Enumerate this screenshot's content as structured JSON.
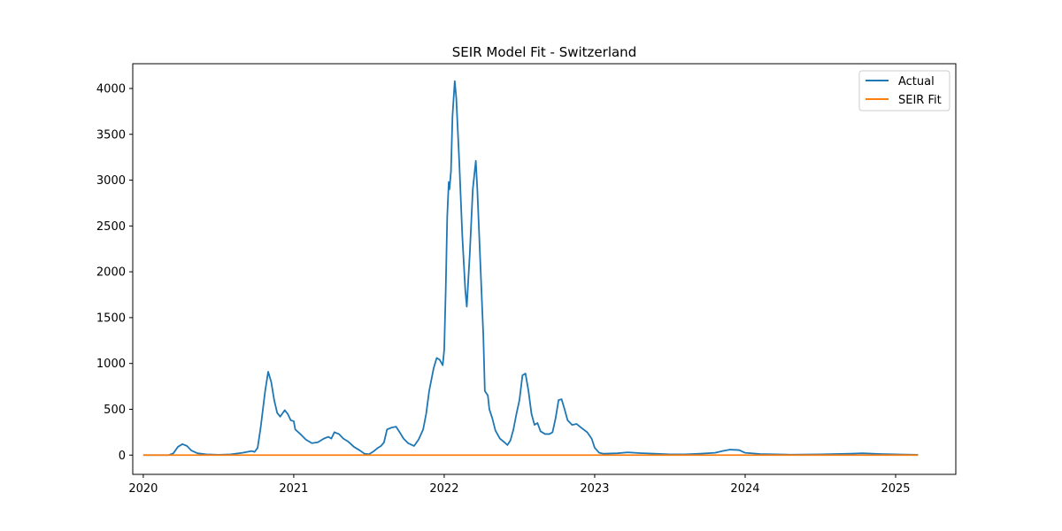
{
  "chart_data": {
    "type": "line",
    "title": "SEIR Model Fit - Switzerland",
    "xlabel": "",
    "ylabel": "",
    "xlim": [
      2019.93,
      2025.4
    ],
    "ylim": [
      -210,
      4270
    ],
    "x_ticks": [
      2020,
      2021,
      2022,
      2023,
      2024,
      2025
    ],
    "x_tick_labels": [
      "2020",
      "2021",
      "2022",
      "2023",
      "2024",
      "2025"
    ],
    "y_ticks": [
      0,
      500,
      1000,
      1500,
      2000,
      2500,
      3000,
      3500,
      4000
    ],
    "y_tick_labels": [
      "0",
      "500",
      "1000",
      "1500",
      "2000",
      "2500",
      "3000",
      "3500",
      "4000"
    ],
    "grid": false,
    "legend_position": "top-right",
    "series": [
      {
        "name": "Actual",
        "color": "#1f77b4",
        "points": [
          [
            2020.0,
            0
          ],
          [
            2020.17,
            0
          ],
          [
            2020.2,
            20
          ],
          [
            2020.23,
            90
          ],
          [
            2020.26,
            120
          ],
          [
            2020.29,
            100
          ],
          [
            2020.32,
            50
          ],
          [
            2020.36,
            20
          ],
          [
            2020.42,
            8
          ],
          [
            2020.5,
            3
          ],
          [
            2020.58,
            8
          ],
          [
            2020.66,
            25
          ],
          [
            2020.72,
            45
          ],
          [
            2020.74,
            35
          ],
          [
            2020.76,
            80
          ],
          [
            2020.78,
            300
          ],
          [
            2020.81,
            700
          ],
          [
            2020.83,
            910
          ],
          [
            2020.85,
            800
          ],
          [
            2020.87,
            600
          ],
          [
            2020.89,
            460
          ],
          [
            2020.91,
            420
          ],
          [
            2020.94,
            490
          ],
          [
            2020.96,
            450
          ],
          [
            2020.98,
            380
          ],
          [
            2021.0,
            370
          ],
          [
            2021.01,
            280
          ],
          [
            2021.05,
            220
          ],
          [
            2021.08,
            170
          ],
          [
            2021.12,
            130
          ],
          [
            2021.16,
            140
          ],
          [
            2021.2,
            180
          ],
          [
            2021.23,
            200
          ],
          [
            2021.25,
            180
          ],
          [
            2021.27,
            250
          ],
          [
            2021.3,
            230
          ],
          [
            2021.33,
            180
          ],
          [
            2021.36,
            150
          ],
          [
            2021.4,
            90
          ],
          [
            2021.44,
            50
          ],
          [
            2021.47,
            15
          ],
          [
            2021.5,
            10
          ],
          [
            2021.53,
            40
          ],
          [
            2021.56,
            80
          ],
          [
            2021.58,
            100
          ],
          [
            2021.6,
            140
          ],
          [
            2021.62,
            280
          ],
          [
            2021.65,
            300
          ],
          [
            2021.68,
            310
          ],
          [
            2021.7,
            260
          ],
          [
            2021.73,
            180
          ],
          [
            2021.76,
            130
          ],
          [
            2021.8,
            100
          ],
          [
            2021.83,
            170
          ],
          [
            2021.86,
            280
          ],
          [
            2021.88,
            450
          ],
          [
            2021.9,
            700
          ],
          [
            2021.93,
            950
          ],
          [
            2021.95,
            1060
          ],
          [
            2021.97,
            1040
          ],
          [
            2021.99,
            980
          ],
          [
            2022.0,
            1150
          ],
          [
            2022.01,
            1800
          ],
          [
            2022.02,
            2600
          ],
          [
            2022.03,
            2980
          ],
          [
            2022.035,
            2900
          ],
          [
            2022.045,
            3100
          ],
          [
            2022.055,
            3700
          ],
          [
            2022.07,
            4080
          ],
          [
            2022.08,
            3900
          ],
          [
            2022.1,
            3200
          ],
          [
            2022.12,
            2400
          ],
          [
            2022.14,
            1800
          ],
          [
            2022.15,
            1620
          ],
          [
            2022.17,
            2200
          ],
          [
            2022.19,
            2900
          ],
          [
            2022.21,
            3210
          ],
          [
            2022.22,
            2900
          ],
          [
            2022.24,
            2100
          ],
          [
            2022.26,
            1300
          ],
          [
            2022.27,
            700
          ],
          [
            2022.29,
            650
          ],
          [
            2022.3,
            500
          ],
          [
            2022.32,
            400
          ],
          [
            2022.34,
            270
          ],
          [
            2022.37,
            180
          ],
          [
            2022.4,
            140
          ],
          [
            2022.42,
            110
          ],
          [
            2022.44,
            160
          ],
          [
            2022.46,
            280
          ],
          [
            2022.48,
            450
          ],
          [
            2022.5,
            600
          ],
          [
            2022.52,
            870
          ],
          [
            2022.54,
            890
          ],
          [
            2022.56,
            700
          ],
          [
            2022.58,
            450
          ],
          [
            2022.6,
            330
          ],
          [
            2022.62,
            350
          ],
          [
            2022.64,
            260
          ],
          [
            2022.67,
            230
          ],
          [
            2022.7,
            230
          ],
          [
            2022.72,
            250
          ],
          [
            2022.74,
            400
          ],
          [
            2022.76,
            600
          ],
          [
            2022.78,
            610
          ],
          [
            2022.8,
            500
          ],
          [
            2022.82,
            380
          ],
          [
            2022.85,
            330
          ],
          [
            2022.88,
            340
          ],
          [
            2022.91,
            300
          ],
          [
            2022.95,
            250
          ],
          [
            2022.98,
            180
          ],
          [
            2023.0,
            80
          ],
          [
            2023.03,
            25
          ],
          [
            2023.06,
            15
          ],
          [
            2023.15,
            20
          ],
          [
            2023.22,
            30
          ],
          [
            2023.3,
            22
          ],
          [
            2023.4,
            15
          ],
          [
            2023.5,
            8
          ],
          [
            2023.6,
            8
          ],
          [
            2023.7,
            15
          ],
          [
            2023.8,
            25
          ],
          [
            2023.85,
            45
          ],
          [
            2023.9,
            60
          ],
          [
            2023.96,
            55
          ],
          [
            2024.0,
            25
          ],
          [
            2024.1,
            12
          ],
          [
            2024.3,
            5
          ],
          [
            2024.5,
            8
          ],
          [
            2024.7,
            15
          ],
          [
            2024.78,
            20
          ],
          [
            2024.9,
            12
          ],
          [
            2025.0,
            8
          ],
          [
            2025.15,
            3
          ]
        ]
      },
      {
        "name": "SEIR Fit",
        "color": "#ff7f0e",
        "points": [
          [
            2020.0,
            0
          ],
          [
            2025.15,
            0
          ]
        ]
      }
    ]
  }
}
